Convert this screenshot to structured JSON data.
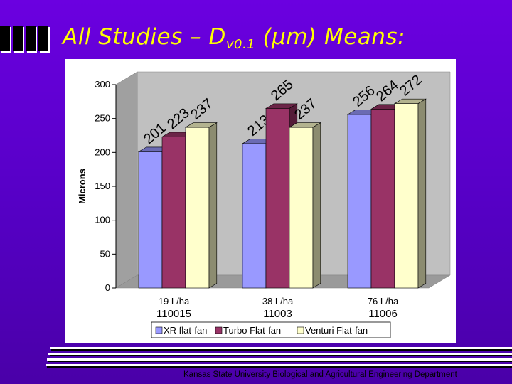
{
  "slide": {
    "title_main": "All Studies – D",
    "title_sub": "v0.1",
    "title_tail": " (µm) Means:",
    "footer": "Kansas State University Biological and Agricultural Engineering Department"
  },
  "chart_data": {
    "type": "bar",
    "ylabel": "Microns",
    "ylim": [
      0,
      300
    ],
    "yticks": [
      0,
      50,
      100,
      150,
      200,
      250,
      300
    ],
    "categories": [
      "19 L/ha",
      "38 L/ha",
      "76 L/ha"
    ],
    "category_sublabels": [
      "110015",
      "11003",
      "11006"
    ],
    "series": [
      {
        "name": "XR flat-fan",
        "values": [
          201,
          213,
          256
        ],
        "color": "#9999ff"
      },
      {
        "name": "Turbo Flat-fan",
        "values": [
          223,
          265,
          264
        ],
        "color": "#993366"
      },
      {
        "name": "Venturi Flat-fan",
        "values": [
          237,
          237,
          272
        ],
        "color": "#ffffcc"
      }
    ],
    "data_labels": true,
    "grid": false,
    "legend_position": "bottom",
    "three_d": true
  }
}
